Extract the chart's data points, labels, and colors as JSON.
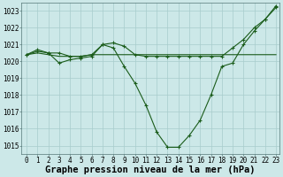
{
  "title": "Graphe pression niveau de la mer (hPa)",
  "bg_color": "#cce8e8",
  "line_color": "#1a5c1a",
  "x_min": 0,
  "x_max": 23,
  "y_min": 1014.5,
  "y_max": 1023.5,
  "y_ticks": [
    1015,
    1016,
    1017,
    1018,
    1019,
    1020,
    1021,
    1022,
    1023
  ],
  "line1_x": [
    0,
    1,
    2,
    3,
    4,
    5,
    6,
    7,
    8,
    9,
    10,
    11,
    12,
    13,
    14,
    15,
    16,
    17,
    18,
    19,
    20,
    21,
    22,
    23
  ],
  "line1_y": [
    1020.4,
    1020.7,
    1020.5,
    1019.9,
    1020.1,
    1020.2,
    1020.3,
    1021.0,
    1020.8,
    1019.7,
    1018.7,
    1017.4,
    1015.8,
    1014.9,
    1014.9,
    1015.6,
    1016.5,
    1018.0,
    1019.7,
    1019.9,
    1021.0,
    1021.8,
    1022.5,
    1023.2
  ],
  "line2_x": [
    0,
    1,
    2,
    3,
    4,
    5,
    6,
    7,
    8,
    9,
    10,
    11,
    12,
    13,
    14,
    15,
    16,
    17,
    18,
    19,
    20,
    21,
    22,
    23
  ],
  "line2_y": [
    1020.4,
    1020.5,
    1020.4,
    1020.3,
    1020.3,
    1020.3,
    1020.4,
    1020.4,
    1020.4,
    1020.4,
    1020.4,
    1020.4,
    1020.4,
    1020.4,
    1020.4,
    1020.4,
    1020.4,
    1020.4,
    1020.4,
    1020.4,
    1020.4,
    1020.4,
    1020.4,
    1020.4
  ],
  "line3_x": [
    0,
    1,
    2,
    3,
    4,
    5,
    6,
    7,
    8,
    9,
    10,
    11,
    12,
    13,
    14,
    15,
    16,
    17,
    18,
    19,
    20,
    21,
    22,
    23
  ],
  "line3_y": [
    1020.4,
    1020.6,
    1020.5,
    1020.5,
    1020.3,
    1020.3,
    1020.4,
    1021.0,
    1021.1,
    1020.9,
    1020.4,
    1020.3,
    1020.3,
    1020.3,
    1020.3,
    1020.3,
    1020.3,
    1020.3,
    1020.3,
    1020.8,
    1021.3,
    1022.0,
    1022.5,
    1023.3
  ],
  "font_family": "monospace",
  "title_fontsize": 7.5,
  "tick_fontsize": 5.5
}
